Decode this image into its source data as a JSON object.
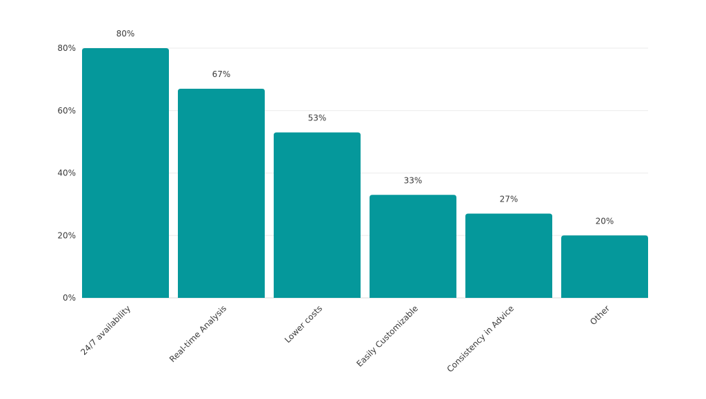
{
  "chart_data": {
    "type": "bar",
    "title": "",
    "xlabel": "",
    "ylabel": "",
    "categories": [
      "24/7 availability",
      "Real-time Analysis",
      "Lower costs",
      "Easily Customizable",
      "Consistency in Advice",
      "Other"
    ],
    "values": [
      80,
      67,
      53,
      33,
      27,
      20
    ],
    "value_labels": [
      "80%",
      "67%",
      "53%",
      "33%",
      "27%",
      "20%"
    ],
    "ylim": [
      0,
      80
    ],
    "yticks": [
      0,
      20,
      40,
      60,
      80
    ],
    "ytick_labels": [
      "0%",
      "20%",
      "40%",
      "60%",
      "80%"
    ],
    "grid": true,
    "legend": "none",
    "colors": {
      "bar": "#05989b",
      "grid": "#ebebeb",
      "axis": "#d9d9d9",
      "text": "#3a3a3a"
    }
  }
}
